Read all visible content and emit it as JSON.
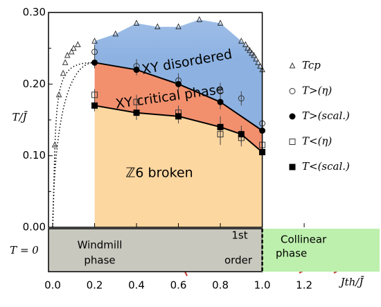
{
  "chart_data": {
    "type": "phase-diagram",
    "xlabel": "Jth/J̄",
    "ylabel": "T/J̄",
    "xlim": [
      -0.02,
      1.56
    ],
    "ylim": [
      0,
      0.3
    ],
    "xticks": [
      {
        "value": 0,
        "label": "0.0"
      },
      0.2,
      0.4,
      0.6,
      0.8,
      {
        "value": 1,
        "label": "1.0"
      },
      1.2
    ],
    "yticks": [
      {
        "value": 0,
        "label": "0.00"
      },
      {
        "value": 0.1,
        "label": "0.10"
      },
      {
        "value": 0.2,
        "label": "0.20"
      },
      {
        "value": 0.3,
        "label": "0.30"
      }
    ],
    "yminor": [
      0.05,
      0.15,
      0.25
    ],
    "regions": [
      {
        "label": "XY disordered",
        "color": "#8db2e2"
      },
      {
        "label": "XY critical phase",
        "color": "#f2906e"
      },
      {
        "label": "ℤ6 broken",
        "color": "#fdd7a0"
      }
    ],
    "series": [
      {
        "name": "Tcp",
        "marker": "triangle-open",
        "color": "#333333",
        "x": [
          0.01,
          0.03,
          0.05,
          0.06,
          0.07,
          0.09,
          0.1,
          0.12,
          0.2,
          0.3,
          0.4,
          0.5,
          0.6,
          0.7,
          0.8,
          0.9,
          0.92,
          0.93,
          0.94,
          0.95,
          0.96,
          0.97,
          0.98,
          0.99,
          1.0
        ],
        "values": [
          0.115,
          0.185,
          0.215,
          0.23,
          0.24,
          0.245,
          0.25,
          0.255,
          0.26,
          0.27,
          0.285,
          0.28,
          0.28,
          0.29,
          0.285,
          0.26,
          0.255,
          0.25,
          0.247,
          0.243,
          0.24,
          0.235,
          0.23,
          0.225,
          0.22
        ]
      },
      {
        "name": "T>(η)",
        "marker": "circle-open",
        "color": "#333333",
        "x": [
          0.2,
          0.4,
          0.6,
          0.8,
          0.9,
          1.0
        ],
        "values": [
          0.245,
          0.225,
          0.205,
          0.19,
          0.18,
          0.145
        ],
        "errors": [
          0.01,
          0.01,
          0.01,
          0.012,
          0.01,
          0.015
        ]
      },
      {
        "name": "T>(scal.)",
        "marker": "circle",
        "color": "#000000",
        "line": true,
        "x": [
          0.2,
          0.4,
          0.6,
          0.8,
          1.0
        ],
        "values": [
          0.23,
          0.22,
          0.2,
          0.175,
          0.135
        ],
        "errors": [
          0.008,
          0.008,
          0.008,
          0.01,
          0.015
        ]
      },
      {
        "name": "T<(η)",
        "marker": "square-open",
        "color": "#333333",
        "x": [
          0.2,
          0.4,
          0.6,
          0.8,
          0.9,
          1.0
        ],
        "values": [
          0.185,
          0.175,
          0.16,
          0.13,
          0.125,
          0.115
        ],
        "errors": [
          0.008,
          0.01,
          0.01,
          0.015,
          0.012,
          0.02
        ]
      },
      {
        "name": "T<(scal.)",
        "marker": "square",
        "color": "#000000",
        "line": true,
        "x": [
          0.2,
          0.4,
          0.6,
          0.8,
          0.9,
          1.0
        ],
        "values": [
          0.17,
          0.16,
          0.155,
          0.14,
          0.13,
          0.105
        ],
        "errors": [
          0.008,
          0.01,
          0.01,
          0.015,
          0.012,
          0.02
        ]
      }
    ],
    "t0_strip": {
      "label": "T = 0",
      "boundary": 1.0,
      "phases": [
        {
          "label": [
            "Windmill",
            "phase"
          ],
          "color": "#c8c8bf"
        },
        {
          "label": [
            "Collinear",
            "phase"
          ],
          "color": "#bdf0ad"
        }
      ],
      "transition": [
        "1st",
        "order"
      ]
    }
  }
}
